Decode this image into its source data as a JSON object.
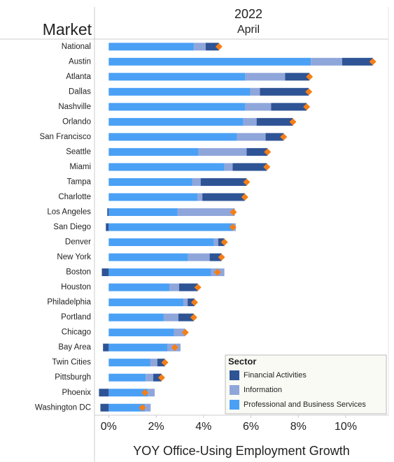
{
  "chart_data": {
    "type": "bar",
    "orientation": "horizontal",
    "stacked": true,
    "title": "2022",
    "subtitle": "April",
    "row_header": "Market",
    "xlabel": "YOY Office-Using Employment Growth",
    "legend_title": "Sector",
    "legend_position": "lower right",
    "total_marker_color": "#f57f17",
    "categories": [
      "National",
      "Austin",
      "Atlanta",
      "Dallas",
      "Nashville",
      "Orlando",
      "San Francisco",
      "Seattle",
      "Miami",
      "Tampa",
      "Charlotte",
      "Los Angeles",
      "San Diego",
      "Denver",
      "New York",
      "Boston",
      "Houston",
      "Philadelphia",
      "Portland",
      "Chicago",
      "Bay Area",
      "Twin Cities",
      "Pittsburgh",
      "Phoenix",
      "Washington DC"
    ],
    "series": [
      {
        "name": "Financial Activities",
        "color": "#2e5495",
        "values": [
          0.56,
          1.29,
          1.03,
          2.06,
          1.5,
          1.53,
          0.76,
          0.88,
          1.44,
          1.94,
          1.79,
          -0.06,
          -0.12,
          0.26,
          0.5,
          -0.29,
          0.79,
          0.29,
          0.65,
          0,
          -0.24,
          0.32,
          0.35,
          -0.41,
          -0.35
        ]
      },
      {
        "name": "Information",
        "color": "#8fa6db",
        "values": [
          0.5,
          1.32,
          1.68,
          0.41,
          1.09,
          0.56,
          1.21,
          2.03,
          0.35,
          0.35,
          0.21,
          2.41,
          0.12,
          0.18,
          0.91,
          0.56,
          0.41,
          0.18,
          0.62,
          0.47,
          0.56,
          0.29,
          0.32,
          0.29,
          0.24
        ]
      },
      {
        "name": "Professional and Business Services",
        "color": "#4aa0f5",
        "values": [
          3.59,
          8.53,
          5.76,
          5.97,
          5.76,
          5.68,
          5.41,
          3.79,
          4.88,
          3.53,
          3.74,
          2.91,
          5.24,
          4.44,
          3.35,
          4.32,
          2.56,
          3.15,
          2.32,
          2.76,
          2.47,
          1.76,
          1.56,
          1.65,
          1.53
        ]
      }
    ],
    "xlim": [
      -0.6,
      11.8
    ],
    "xticks": [
      {
        "value": 0,
        "label": "0%"
      },
      {
        "value": 2,
        "label": "2%"
      },
      {
        "value": 4,
        "label": "4%"
      },
      {
        "value": 6,
        "label": "6%"
      },
      {
        "value": 8,
        "label": "8%"
      },
      {
        "value": 10,
        "label": "10%"
      }
    ]
  }
}
